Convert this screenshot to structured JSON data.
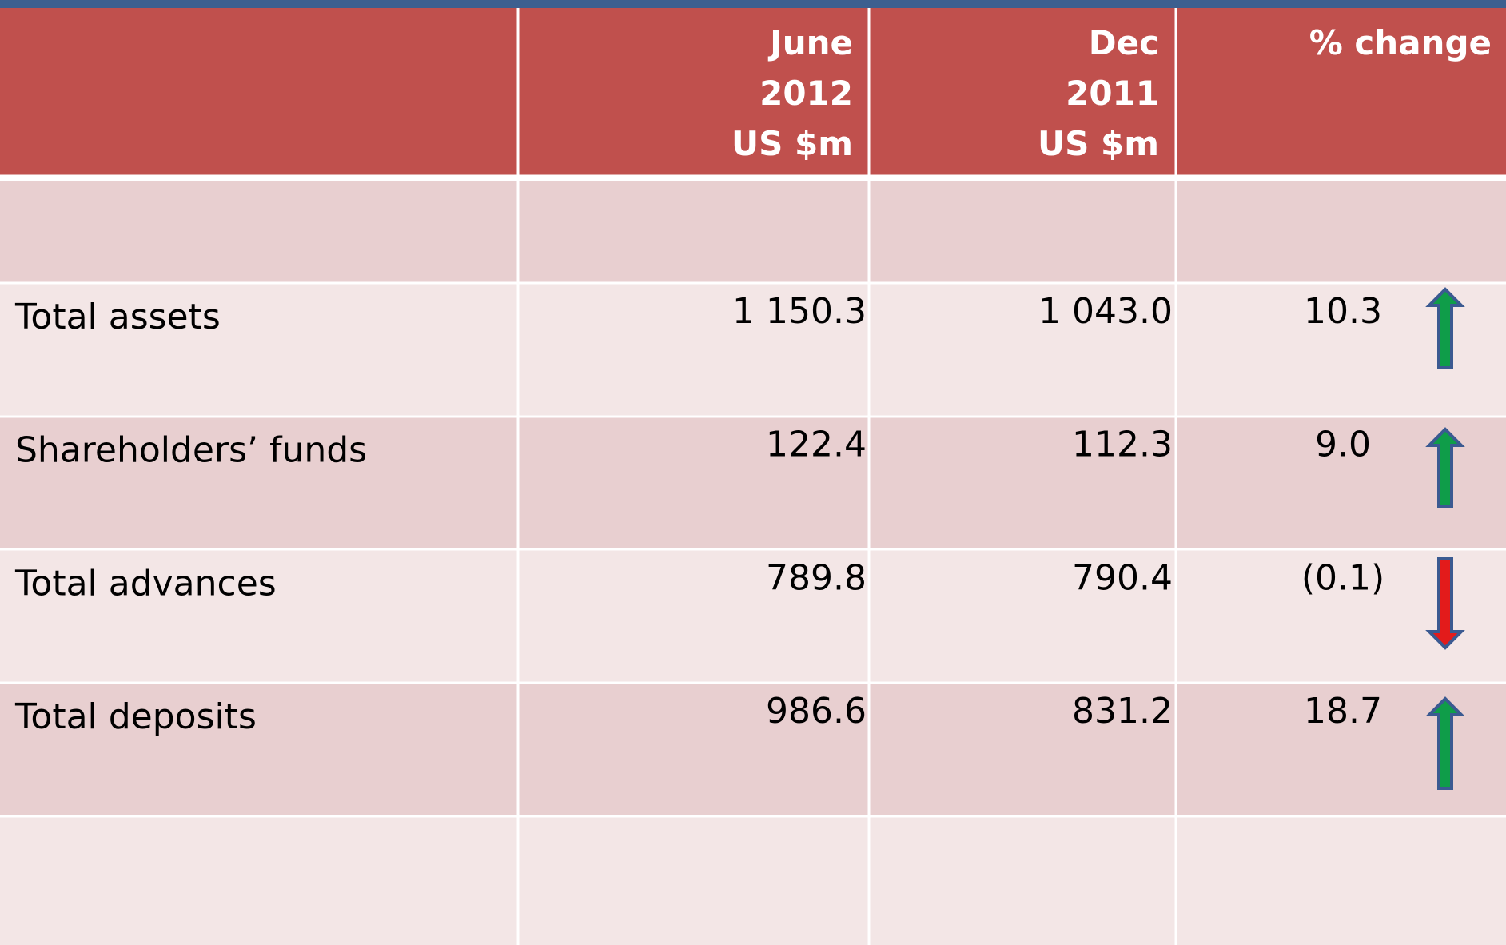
{
  "table": {
    "header": [
      [],
      [
        "June",
        "2012",
        "US $m"
      ],
      [
        "Dec",
        "2011",
        "US $m"
      ],
      [
        "% change"
      ]
    ],
    "rows": [
      [
        "Total assets",
        "1 150.3",
        "1 043.0",
        "10.3"
      ],
      [
        "Shareholders’ funds",
        "122.4",
        "112.3",
        "9.0"
      ],
      [
        "Total advances",
        "789.8",
        "790.4",
        "(0.1)"
      ],
      [
        "Total deposits",
        "986.6",
        "831.2",
        "18.7"
      ]
    ]
  }
}
